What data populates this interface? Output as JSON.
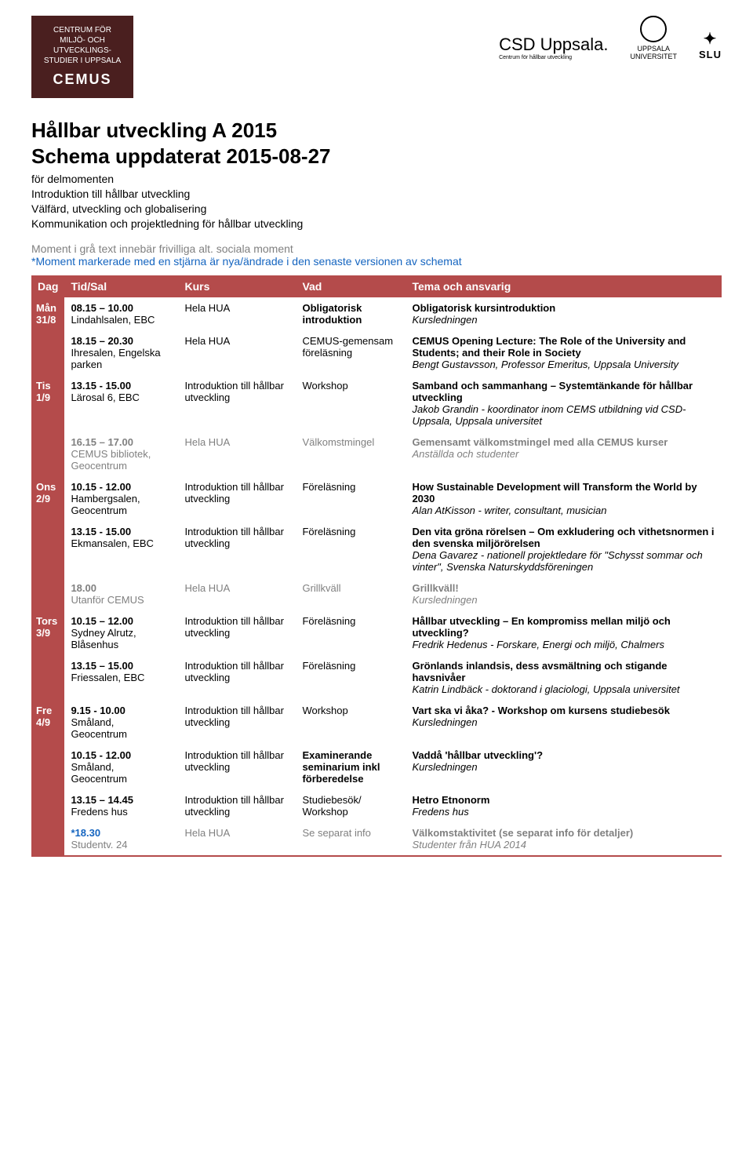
{
  "colors": {
    "theme_red": "#b44b4b",
    "theme_dark": "#4a1f1f",
    "gray_text": "#808080",
    "blue_text": "#1565c0",
    "white": "#ffffff",
    "black": "#000000"
  },
  "logos": {
    "cemus_lines": "CENTRUM FÖR\nMILJÖ- OCH\nUTVECKLINGS-\nSTUDIER I UPPSALA",
    "cemus_big": "CEMUS",
    "csd": "CSD Uppsala.",
    "csd_sub": "Centrum för hållbar utveckling",
    "uu": "UPPSALA\nUNIVERSITET",
    "slu": "SLU"
  },
  "title1": "Hållbar utveckling A 2015",
  "title2": "Schema uppdaterat 2015-08-27",
  "intro": {
    "l1": "för delmomenten",
    "l2": "Introduktion till hållbar utveckling",
    "l3": "Välfärd, utveckling och globalisering",
    "l4": "Kommunikation och projektledning för hållbar utveckling"
  },
  "note_gray": "Moment i grå text innebär frivilliga alt. sociala moment",
  "note_blue": "*Moment markerade med en stjärna är nya/ändrade i den senaste versionen av schemat",
  "headers": {
    "dag": "Dag",
    "tid": "Tid/Sal",
    "kurs": "Kurs",
    "vad": "Vad",
    "tema": "Tema och ansvarig"
  },
  "days": {
    "mon": "Mån\n31/8",
    "tue": "Tis\n1/9",
    "wed": "Ons\n2/9",
    "thu": "Tors\n3/9",
    "fri": "Fre\n4/9"
  },
  "rows": {
    "r1": {
      "time": "08.15 – 10.00",
      "loc": "Lindahlsalen, EBC",
      "kurs": "Hela HUA",
      "vad": "Obligatorisk introduktion",
      "tema": "Obligatorisk kursintroduktion",
      "detail": "Kursledningen"
    },
    "r2": {
      "time": "18.15 – 20.30",
      "loc": "Ihresalen, Engelska parken",
      "kurs": "Hela HUA",
      "vad": "CEMUS-gemensam föreläsning",
      "tema": "CEMUS Opening Lecture: The Role of the University and Students; and their Role in Society",
      "detail": "Bengt Gustavsson, Professor Emeritus, Uppsala University"
    },
    "r3": {
      "time": "13.15 - 15.00",
      "loc": "Lärosal 6, EBC",
      "kurs": "Introduktion till hållbar utveckling",
      "vad": "Workshop",
      "tema": "Samband och sammanhang – Systemtänkande för hållbar utveckling",
      "detail": "Jakob Grandin - koordinator inom CEMS utbildning vid CSD-Uppsala, Uppsala universitet"
    },
    "r4": {
      "time": "16.15 – 17.00",
      "loc": "CEMUS bibliotek, Geocentrum",
      "kurs": "Hela HUA",
      "vad": "Välkomstmingel",
      "tema": "Gemensamt välkomstmingel med alla CEMUS kurser",
      "detail": "Anställda och studenter"
    },
    "r5": {
      "time": "10.15 - 12.00",
      "loc": "Hambergsalen, Geocentrum",
      "kurs": "Introduktion till hållbar utveckling",
      "vad": "Föreläsning",
      "tema": "How Sustainable Development will Transform the World by 2030",
      "detail": "Alan AtKisson - writer, consultant, musician"
    },
    "r6": {
      "time": "13.15 - 15.00",
      "loc": "Ekmansalen, EBC",
      "kurs": "Introduktion till hållbar utveckling",
      "vad": "Föreläsning",
      "tema": "Den vita gröna rörelsen – Om exkludering och vithetsnormen i den svenska miljörörelsen",
      "detail": "Dena Gavarez - nationell projektledare för \"Schysst sommar och vinter\", Svenska Naturskyddsföreningen"
    },
    "r7": {
      "time": "18.00",
      "loc": "Utanför CEMUS",
      "kurs": "Hela HUA",
      "vad": "Grillkväll",
      "tema": "Grillkväll!",
      "detail": "Kursledningen"
    },
    "r8": {
      "time": "10.15 – 12.00",
      "loc": "Sydney Alrutz, Blåsenhus",
      "kurs": "Introduktion till hållbar utveckling",
      "vad": "Föreläsning",
      "tema": "Hållbar utveckling – En kompromiss mellan miljö och utveckling?",
      "detail": "Fredrik Hedenus - Forskare, Energi och miljö, Chalmers"
    },
    "r9": {
      "time": "13.15 – 15.00",
      "loc": "Friessalen, EBC",
      "kurs": "Introduktion till hållbar utveckling",
      "vad": "Föreläsning",
      "tema": "Grönlands inlandsis, dess avsmältning och stigande havsnivåer",
      "detail": "Katrin Lindbäck - doktorand i glaciologi, Uppsala universitet"
    },
    "r10": {
      "time": "9.15 - 10.00",
      "loc": "Småland, Geocentrum",
      "kurs": "Introduktion till hållbar utveckling",
      "vad": "Workshop",
      "tema": "Vart ska vi åka? - Workshop om kursens studiebesök",
      "detail": "Kursledningen"
    },
    "r11": {
      "time": "10.15 - 12.00",
      "loc": "Småland, Geocentrum",
      "kurs": "Introduktion till hållbar utveckling",
      "vad": "Examinerande seminarium inkl förberedelse",
      "tema": "Vaddå 'hållbar utveckling'?",
      "detail": "Kursledningen"
    },
    "r12": {
      "time": "13.15 – 14.45",
      "loc": "Fredens hus",
      "kurs": "Introduktion till hållbar utveckling",
      "vad": "Studiebesök/ Workshop",
      "tema": "Hetro Etnonorm",
      "detail": "Fredens hus"
    },
    "r13": {
      "time": "*18.30",
      "loc": "Studentv. 24",
      "kurs": "Hela HUA",
      "vad": "Se separat info",
      "tema": "Välkomstaktivitet (se separat info för detaljer)",
      "detail": "Studenter från HUA 2014"
    }
  }
}
